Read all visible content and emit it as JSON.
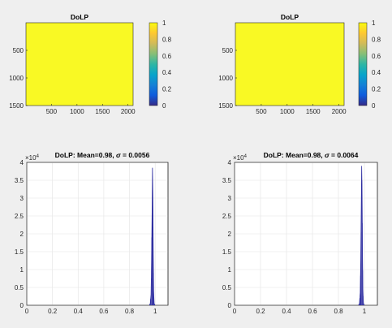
{
  "chart_data": [
    {
      "type": "heatmap",
      "title": "DoLP",
      "xticks": [
        500,
        1000,
        1500,
        2000
      ],
      "yticks": [
        500,
        1000,
        1500
      ],
      "xlim": [
        0,
        2100
      ],
      "ylim": [
        0,
        1500
      ],
      "uniform_value": 0.98,
      "colorbar": {
        "ticks": [
          "0",
          "0.2",
          "0.4",
          "0.6",
          "0.8",
          "1"
        ],
        "range": [
          0,
          1
        ]
      },
      "colors": {
        "fill": "#f9f924"
      }
    },
    {
      "type": "heatmap",
      "title": "DoLP",
      "xticks": [
        500,
        1000,
        1500,
        2000
      ],
      "yticks": [
        500,
        1000,
        1500
      ],
      "xlim": [
        0,
        2100
      ],
      "ylim": [
        0,
        1500
      ],
      "uniform_value": 0.98,
      "colorbar": {
        "ticks": [
          "0",
          "0.2",
          "0.4",
          "0.6",
          "0.8",
          "1"
        ],
        "range": [
          0,
          1
        ]
      },
      "colors": {
        "fill": "#f9f924"
      }
    },
    {
      "type": "bar",
      "title_prefix": "DoLP: Mean=0.98, ",
      "title_sigma": "σ",
      "title_suffix": " = 0.0056",
      "exponent": "4",
      "xticks": [
        "0",
        "0.2",
        "0.4",
        "0.6",
        "0.8",
        "1"
      ],
      "yticks": [
        "0",
        "0.5",
        "1",
        "1.5",
        "2",
        "2.5",
        "3",
        "3.5",
        "4"
      ],
      "xlim": [
        0,
        1.1
      ],
      "ylim": [
        0,
        4
      ],
      "grid": true,
      "x": [
        0.955,
        0.962,
        0.968,
        0.972,
        0.976,
        0.979,
        0.982,
        0.985,
        0.988,
        0.992,
        0.998
      ],
      "y": [
        0,
        0.05,
        0.3,
        1.2,
        2.6,
        3.85,
        3.0,
        1.4,
        0.4,
        0.05,
        0
      ],
      "colors": {
        "bars": "#2c2ca0"
      }
    },
    {
      "type": "bar",
      "title_prefix": "DoLP: Mean=0.98, ",
      "title_sigma": "σ",
      "title_suffix": " = 0.0064",
      "exponent": "4",
      "xticks": [
        "0",
        "0.2",
        "0.4",
        "0.6",
        "0.8",
        "1"
      ],
      "yticks": [
        "0",
        "0.5",
        "1",
        "1.5",
        "2",
        "2.5",
        "3",
        "3.5",
        "4"
      ],
      "xlim": [
        0,
        1.1
      ],
      "ylim": [
        0,
        4
      ],
      "grid": true,
      "x": [
        0.955,
        0.962,
        0.968,
        0.972,
        0.976,
        0.979,
        0.982,
        0.985,
        0.988,
        0.992,
        0.998
      ],
      "y": [
        0,
        0.05,
        0.35,
        1.3,
        2.8,
        3.9,
        3.1,
        1.5,
        0.45,
        0.06,
        0
      ],
      "colors": {
        "bars": "#2c2ca0"
      }
    }
  ]
}
